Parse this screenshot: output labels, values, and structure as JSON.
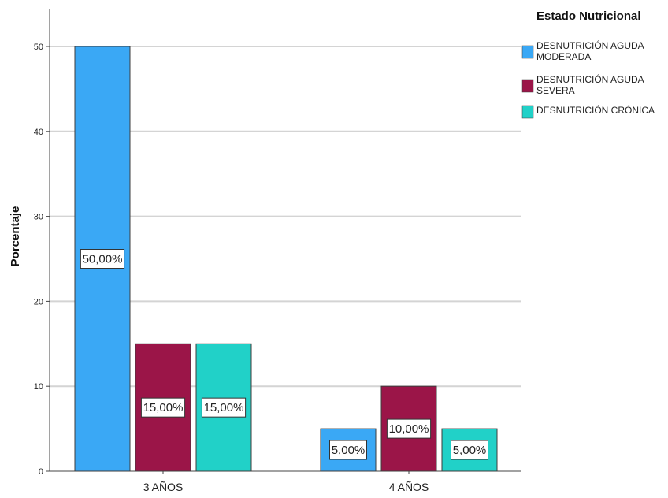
{
  "chart_data": {
    "type": "bar",
    "categories": [
      "3 AÑOS",
      "4 AÑOS"
    ],
    "series": [
      {
        "name": "DESNUTRICIÓN AGUDA MODERADA",
        "color": "#3aa8f5",
        "values": [
          50,
          5
        ],
        "labels": [
          "50,00%",
          "5,00%"
        ]
      },
      {
        "name": "DESNUTRICIÓN AGUDA SEVERA",
        "color": "#9b1548",
        "values": [
          15,
          10
        ],
        "labels": [
          "15,00%",
          "10,00%"
        ]
      },
      {
        "name": "DESNUTRICIÓN CRÓNICA",
        "color": "#21d1c8",
        "values": [
          15,
          5
        ],
        "labels": [
          "15,00%",
          "5,00%"
        ]
      }
    ],
    "ylabel": "Porcentaje",
    "xlabel": "",
    "ylim": [
      0,
      55
    ],
    "yticks": [
      0,
      10,
      20,
      30,
      40,
      50
    ],
    "grid": true,
    "legend": {
      "title": "Estado Nutricional",
      "placement": "top-right",
      "entries": [
        [
          "DESNUTRICIÓN AGUDA",
          "MODERADA"
        ],
        [
          "DESNUTRICIÓN AGUDA",
          "SEVERA"
        ],
        [
          "DESNUTRICIÓN CRÓNICA"
        ]
      ]
    }
  }
}
